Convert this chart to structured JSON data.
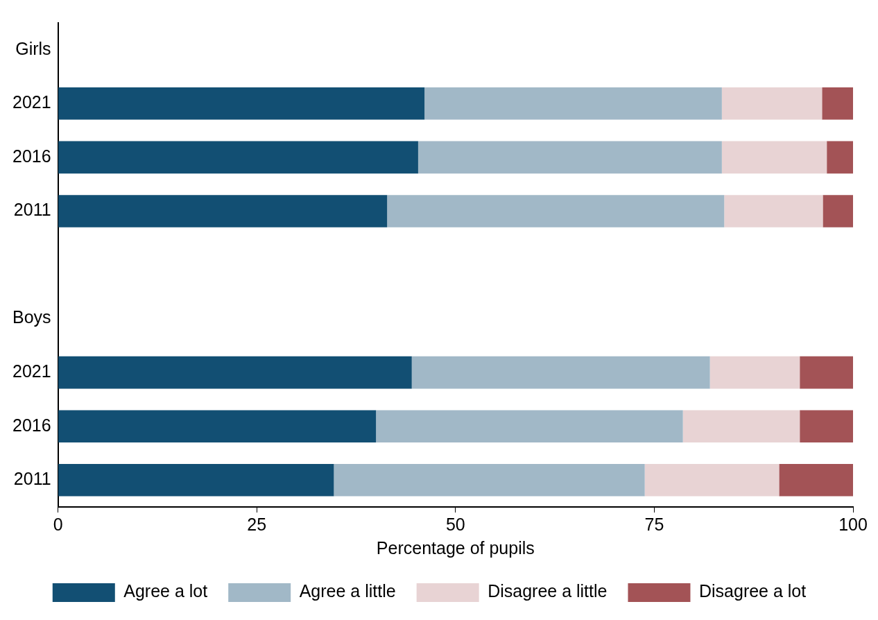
{
  "chart_data": {
    "type": "bar",
    "orientation": "horizontal",
    "stacked": true,
    "xlabel": "Percentage of pupils",
    "categories": [
      "Girls",
      "2021",
      "2016",
      "2011",
      null,
      "Boys",
      "2021",
      "2016",
      "2011"
    ],
    "series": [
      {
        "name": "Agree a lot",
        "color": "#124f73",
        "values": [
          null,
          46.1,
          45.3,
          41.4,
          null,
          null,
          44.5,
          40.0,
          34.7
        ]
      },
      {
        "name": "Agree a little",
        "color": "#a1b8c7",
        "values": [
          null,
          37.4,
          38.2,
          42.4,
          null,
          null,
          37.5,
          38.6,
          39.1
        ]
      },
      {
        "name": "Disagree a little",
        "color": "#e8d3d4",
        "values": [
          null,
          12.6,
          13.2,
          12.4,
          null,
          null,
          11.3,
          14.7,
          16.9
        ]
      },
      {
        "name": "Disagree a lot",
        "color": "#a35356",
        "values": [
          null,
          3.9,
          3.3,
          3.8,
          null,
          null,
          6.7,
          6.7,
          9.3
        ]
      }
    ],
    "xlim": [
      0,
      100
    ],
    "xticks": [
      0,
      25,
      50,
      75,
      100
    ],
    "grid": false,
    "legend": "bottom"
  }
}
